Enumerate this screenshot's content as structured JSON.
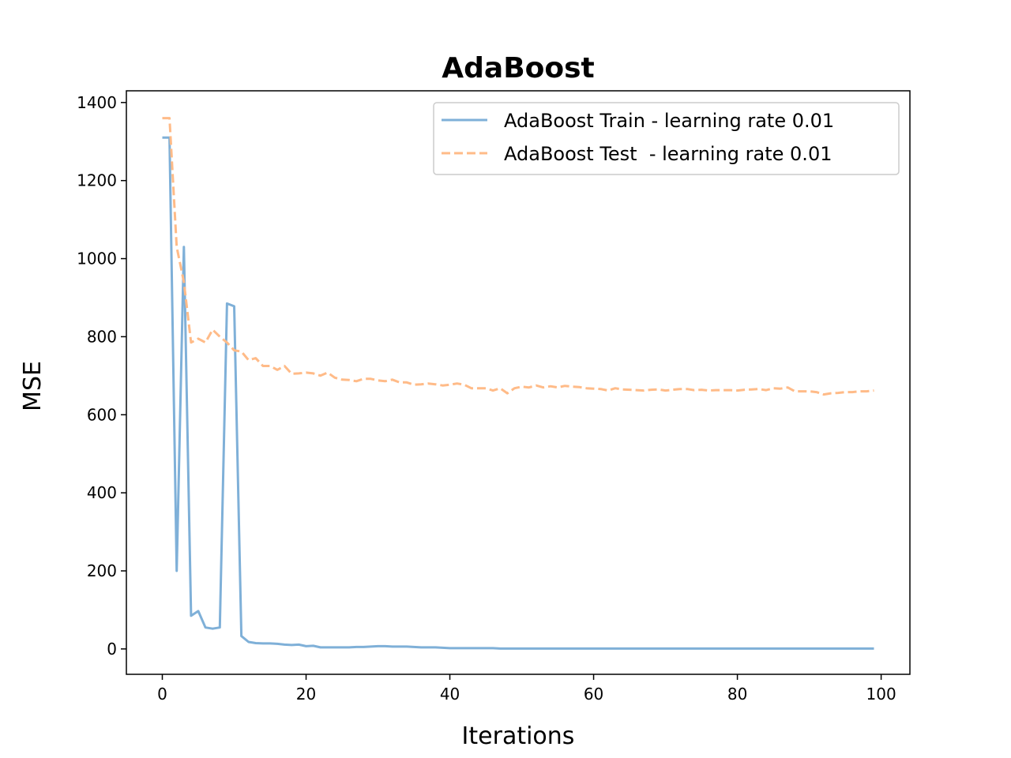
{
  "chart_data": {
    "type": "line",
    "title": "AdaBoost",
    "xlabel": "Iterations",
    "ylabel": "MSE",
    "xlim": [
      -5,
      104
    ],
    "ylim": [
      -65,
      1430
    ],
    "xticks": [
      0,
      20,
      40,
      60,
      80,
      100
    ],
    "yticks": [
      0,
      200,
      400,
      600,
      800,
      1000,
      1200,
      1400
    ],
    "grid": false,
    "legend_position": "top-right",
    "series": [
      {
        "name": "AdaBoost Train - learning rate 0.01",
        "color": "#7fb0d8",
        "style": "solid",
        "x": [
          0,
          1,
          2,
          3,
          4,
          5,
          6,
          7,
          8,
          9,
          10,
          11,
          12,
          13,
          14,
          15,
          16,
          17,
          18,
          19,
          20,
          21,
          22,
          23,
          24,
          25,
          26,
          27,
          28,
          29,
          30,
          31,
          32,
          33,
          34,
          35,
          36,
          37,
          38,
          39,
          40,
          41,
          42,
          43,
          44,
          45,
          46,
          47,
          48,
          49,
          50,
          51,
          52,
          53,
          54,
          55,
          56,
          57,
          58,
          59,
          60,
          61,
          62,
          63,
          64,
          65,
          66,
          67,
          68,
          69,
          70,
          71,
          72,
          73,
          74,
          75,
          76,
          77,
          78,
          79,
          80,
          81,
          82,
          83,
          84,
          85,
          86,
          87,
          88,
          89,
          90,
          91,
          92,
          93,
          94,
          95,
          96,
          97,
          98,
          99
        ],
        "values": [
          1310,
          1310,
          200,
          1030,
          85,
          97,
          55,
          52,
          55,
          885,
          878,
          33,
          18,
          15,
          14,
          14,
          13,
          11,
          10,
          11,
          7,
          8,
          4,
          4,
          4,
          4,
          4,
          5,
          5,
          6,
          7,
          7,
          6,
          6,
          6,
          5,
          4,
          4,
          4,
          3,
          2,
          2,
          2,
          2,
          2,
          2,
          2,
          1,
          1,
          1,
          1,
          1,
          1,
          1,
          1,
          1,
          1,
          1,
          1,
          1,
          1,
          1,
          1,
          1,
          1,
          1,
          1,
          1,
          1,
          1,
          1,
          1,
          1,
          1,
          1,
          1,
          1,
          1,
          1,
          1,
          1,
          1,
          1,
          1,
          1,
          1,
          1,
          1,
          1,
          1,
          1,
          1,
          1,
          1,
          1,
          1,
          1,
          1,
          1,
          1
        ]
      },
      {
        "name": "AdaBoost Test  - learning rate 0.01",
        "color": "#ffbb88",
        "style": "dashed",
        "x": [
          0,
          1,
          2,
          3,
          4,
          5,
          6,
          7,
          8,
          9,
          10,
          11,
          12,
          13,
          14,
          15,
          16,
          17,
          18,
          19,
          20,
          21,
          22,
          23,
          24,
          25,
          26,
          27,
          28,
          29,
          30,
          31,
          32,
          33,
          34,
          35,
          36,
          37,
          38,
          39,
          40,
          41,
          42,
          43,
          44,
          45,
          46,
          47,
          48,
          49,
          50,
          51,
          52,
          53,
          54,
          55,
          56,
          57,
          58,
          59,
          60,
          61,
          62,
          63,
          64,
          65,
          66,
          67,
          68,
          69,
          70,
          71,
          72,
          73,
          74,
          75,
          76,
          77,
          78,
          79,
          80,
          81,
          82,
          83,
          84,
          85,
          86,
          87,
          88,
          89,
          90,
          91,
          92,
          93,
          94,
          95,
          96,
          97,
          98,
          99
        ],
        "values": [
          1360,
          1360,
          1030,
          940,
          785,
          795,
          785,
          818,
          800,
          785,
          765,
          762,
          740,
          745,
          725,
          725,
          715,
          725,
          705,
          706,
          708,
          706,
          700,
          708,
          695,
          690,
          689,
          686,
          692,
          692,
          688,
          686,
          690,
          683,
          683,
          677,
          678,
          680,
          678,
          675,
          677,
          680,
          677,
          668,
          668,
          668,
          662,
          668,
          655,
          668,
          672,
          670,
          675,
          670,
          673,
          670,
          674,
          672,
          671,
          668,
          667,
          666,
          662,
          668,
          665,
          664,
          663,
          662,
          664,
          665,
          662,
          664,
          666,
          666,
          663,
          664,
          662,
          663,
          663,
          663,
          662,
          664,
          665,
          666,
          663,
          668,
          667,
          670,
          660,
          660,
          660,
          658,
          652,
          655,
          656,
          658,
          658,
          660,
          660,
          662
        ]
      }
    ]
  }
}
